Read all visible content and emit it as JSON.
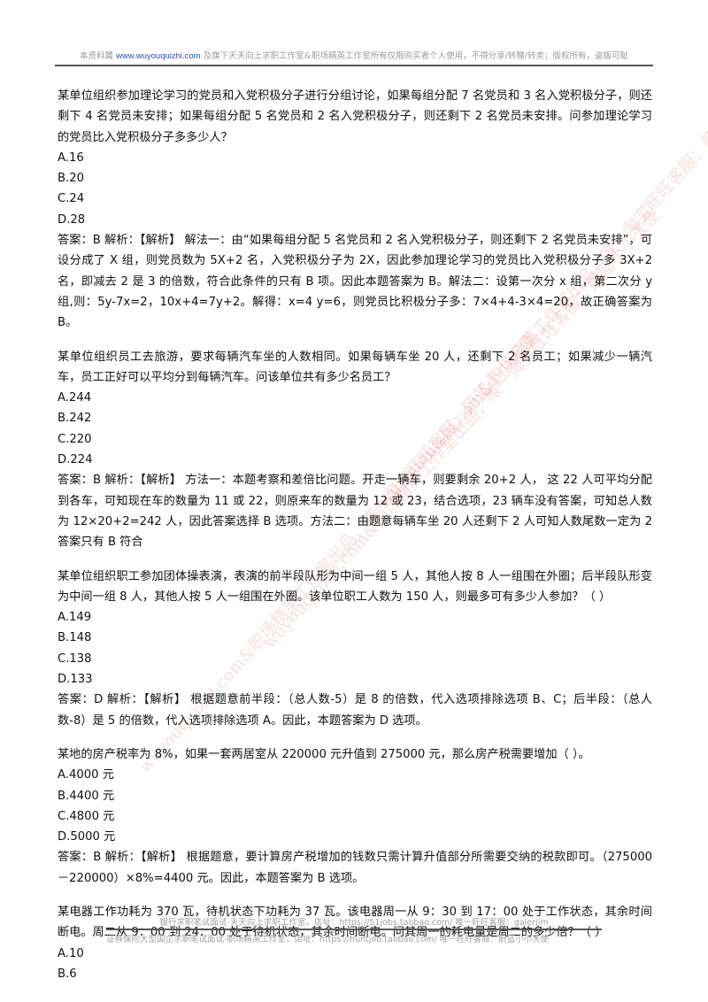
{
  "header": {
    "prefix": "本资料属",
    "link": "www.wuyouquizhi.com",
    "suffix": "及旗下天天向上求职工作室&职场精英工作室所有仅限购买者个人使用，不得分享/转赠/转卖；版权所有，盗版可耻"
  },
  "questions": [
    {
      "stem": "某单位组织参加理论学习的党员和入党积极分子进行分组讨论，如果每组分配 7 名党员和 3 名入党积极分子，则还剩下 4 名党员未安排；如果每组分配 5 名党员和 2 名入党积极分子，则还剩下 2 名党员未安排。问参加理论学习的党员比入党积极分子多多少人？",
      "options": [
        "A.16",
        "B.20",
        "C.24",
        "D.28"
      ],
      "answer": "答案：B 解析：【解析】 解法一：由“如果每组分配 5 名党员和 2 名入党积极分子，则还剩下 2 名党员未安排”，可设分成了 X 组，则党员数为 5X+2 名，入党积极分子为 2X，因此参加理论学习的党员比入党积极分子多 3X+2 名，即减去 2 是 3 的倍数，符合此条件的只有 B 项。因此本题答案为 B。解法二：设第一次分 x 组，第二次分 y 组,则：5y-7x=2，10x+4=7y+2。解得：x=4 y=6，则党员比积极分子多：7×4+4-3×4=20，故正确答案为 B。"
    },
    {
      "stem": "某单位组织员工去旅游，要求每辆汽车坐的人数相同。如果每辆车坐 20 人，还剩下 2 名员工；如果减少一辆汽车，员工正好可以平均分到每辆汽车。问该单位共有多少名员工？",
      "options": [
        "A.244",
        "B.242",
        "C.220",
        "D.224"
      ],
      "answer": "答案：B 解析：【解析】 方法一：本题考察和差倍比问题。开走一辆车，则要剩余 20+2 人， 这 22 人可平均分配到各车，可知现在车的数量为 11 或 22，则原来车的数量为 12 或 23，结合选项，23 辆车没有答案，可知总人数为 12×20+2=242 人，因此答案选择 B 选项。方法二：由题意每辆车坐 20 人还剩下 2 人可知人数尾数一定为 2 答案只有 B 符合"
    },
    {
      "stem": "某单位组织职工参加团体操表演，表演的前半段队形为中间一组 5 人，其他人按 8 人一组围在外圈；后半段队形变为中间一组 8 人，其他人按 5 人一组围在外圈。该单位职工人数为 150 人，则最多可有多少人参加？（ ）",
      "options": [
        "A.149",
        "B.148",
        "C.138",
        "D.133"
      ],
      "answer": "答案：D 解析：【解析】 根据题意前半段：（总人数-5）是 8 的倍数，代入选项排除选项 B、C；后半段：（总人数-8）是 5 的倍数，代入选项排除选项 A。因此，本题答案为 D 选项。"
    },
    {
      "stem": "某地的房产税率为 8%，如果一套两居室从 220000 元升值到 275000 元，那么房产税需要增加（ ）。",
      "options": [
        "A.4000 元",
        "B.4400 元",
        "C.4800 元",
        "D.5000 元"
      ],
      "answer": "答案：B 解析：【解析】 根据题意，要计算房产税增加的钱数只需计算升值部分所需要交纳的税款即可。（275000－220000）×8%=4400 元。因此，本题答案为 B 选项。"
    },
    {
      "stem": "某电器工作功耗为 370 瓦，待机状态下功耗为 37 瓦。该电器周一从 9：30 到 17：00 处于工作状态，其余时间断电。周二从 9：00 到 24：00 处于待机状态，其余时间断电。问其周一的耗电量是周二的多少倍？（ ）",
      "options": [
        "A.10",
        "B.6"
      ],
      "answer": ""
    }
  ],
  "footer": {
    "line1": "银行求职笔试面试-天天向上求职工作室，店址：https://51jobs.taobao.com/ 唯一旺旺客服：galerjim",
    "line2": "证券保险大型国企求职笔试面试-职场精英工作室，店址：https://huntjob.taobao.com/ 唯一旺旺客服：蔚蓝小小天使"
  },
  "watermark": {
    "text1": "wuyouquizhi.com&职场精英工作室出品，唯一淘宝旺旺客服：蔚蓝小小天使",
    "color": "#e43a3a"
  }
}
